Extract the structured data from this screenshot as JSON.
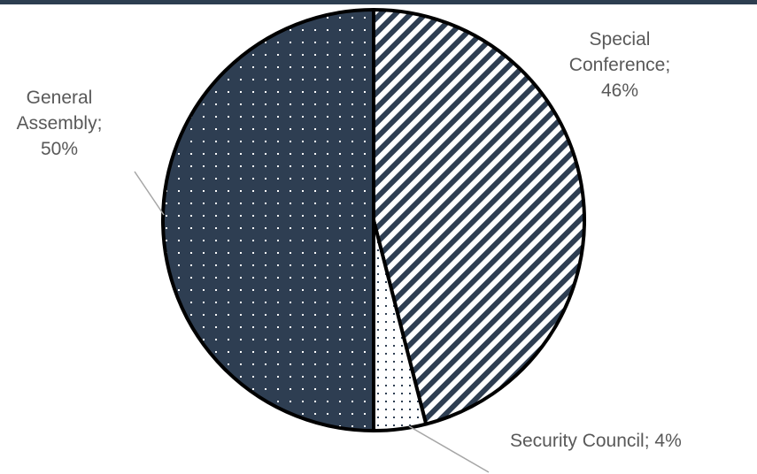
{
  "colors": {
    "bar": "#2d3e50",
    "navy": "#2e3e52",
    "outline": "#000000",
    "label": "#595959",
    "leader": "#a6a6a6",
    "background": "#ffffff"
  },
  "chart_data": {
    "type": "pie",
    "title": "",
    "slices": [
      {
        "label": "Special Conference",
        "value": 46,
        "display": "46%",
        "pattern": "diagonal-stripes"
      },
      {
        "label": "Security Council",
        "value": 4,
        "display": "4%",
        "pattern": "light-dots"
      },
      {
        "label": "General Assembly",
        "value": 50,
        "display": "50%",
        "pattern": "dark-dots"
      }
    ],
    "labels": {
      "special": {
        "line1": "Special",
        "line2": "Conference;",
        "line3": "46%"
      },
      "general": {
        "line1": "General",
        "line2": "Assembly;",
        "line3": "50%"
      },
      "security": {
        "line1": "Security Council; 4%"
      }
    },
    "legend": "none"
  }
}
